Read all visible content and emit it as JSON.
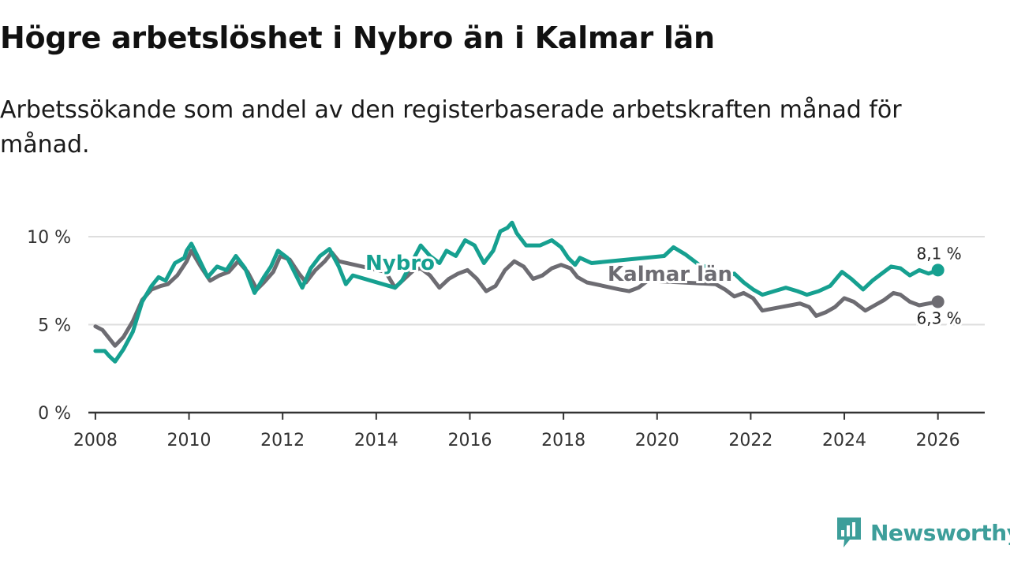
{
  "title": "Högre arbetslöshet i Nybro än i Kalmar län",
  "subtitle": "Arbetssökande som andel av den registerbaserade arbetskraften månad för månad.",
  "brand": {
    "name": "Newsworthy",
    "icon": "newsworthy-logo-icon"
  },
  "colors": {
    "nybro": "#16a090",
    "kalmar": "#6d6c72",
    "grid": "#dedede",
    "axis": "#333333"
  },
  "chart_data": {
    "type": "line",
    "title": "Högre arbetslöshet i Nybro än i Kalmar län",
    "xlabel": "",
    "ylabel": "",
    "xlim": [
      2007.85,
      2027.0
    ],
    "ylim": [
      0,
      10
    ],
    "x_ticks": [
      {
        "value": 2008,
        "label": "2008"
      },
      {
        "value": 2010,
        "label": "2010"
      },
      {
        "value": 2012,
        "label": "2012"
      },
      {
        "value": 2014,
        "label": "2014"
      },
      {
        "value": 2016,
        "label": "2016"
      },
      {
        "value": 2018,
        "label": "2018"
      },
      {
        "value": 2020,
        "label": "2020"
      },
      {
        "value": 2022,
        "label": "2022"
      },
      {
        "value": 2024,
        "label": "2024"
      },
      {
        "value": 2026,
        "label": "2026"
      }
    ],
    "y_ticks": [
      {
        "value": 0,
        "label": "0 %"
      },
      {
        "value": 5,
        "label": "5 %"
      },
      {
        "value": 10,
        "label": "10 %"
      }
    ],
    "series": [
      {
        "name": "Nybro",
        "label": "Nybro",
        "color": "#16a090",
        "end_label": "8,1 %",
        "points": [
          [
            2008.0,
            3.5
          ],
          [
            2008.2,
            3.5
          ],
          [
            2008.3,
            3.2
          ],
          [
            2008.42,
            2.9
          ],
          [
            2008.6,
            3.6
          ],
          [
            2008.8,
            4.6
          ],
          [
            2009.0,
            6.3
          ],
          [
            2009.2,
            7.2
          ],
          [
            2009.35,
            7.7
          ],
          [
            2009.5,
            7.5
          ],
          [
            2009.7,
            8.5
          ],
          [
            2009.9,
            8.8
          ],
          [
            2009.95,
            9.2
          ],
          [
            2010.05,
            9.6
          ],
          [
            2010.2,
            8.8
          ],
          [
            2010.4,
            7.7
          ],
          [
            2010.6,
            8.3
          ],
          [
            2010.8,
            8.1
          ],
          [
            2011.0,
            8.9
          ],
          [
            2011.2,
            8.2
          ],
          [
            2011.4,
            6.8
          ],
          [
            2011.6,
            7.7
          ],
          [
            2011.75,
            8.3
          ],
          [
            2011.9,
            9.2
          ],
          [
            2012.1,
            8.8
          ],
          [
            2012.25,
            8.0
          ],
          [
            2012.42,
            7.1
          ],
          [
            2012.6,
            8.2
          ],
          [
            2012.8,
            8.9
          ],
          [
            2013.0,
            9.3
          ],
          [
            2013.2,
            8.3
          ],
          [
            2013.35,
            7.3
          ],
          [
            2013.5,
            7.8
          ],
          [
            2014.4,
            7.1
          ],
          [
            2014.55,
            7.5
          ],
          [
            2014.75,
            8.5
          ],
          [
            2014.95,
            9.5
          ],
          [
            2015.15,
            8.9
          ],
          [
            2015.35,
            8.5
          ],
          [
            2015.5,
            9.2
          ],
          [
            2015.7,
            8.9
          ],
          [
            2015.9,
            9.8
          ],
          [
            2016.1,
            9.5
          ],
          [
            2016.3,
            8.5
          ],
          [
            2016.5,
            9.2
          ],
          [
            2016.65,
            10.3
          ],
          [
            2016.8,
            10.5
          ],
          [
            2016.9,
            10.8
          ],
          [
            2017.0,
            10.2
          ],
          [
            2017.2,
            9.5
          ],
          [
            2017.5,
            9.5
          ],
          [
            2017.75,
            9.8
          ],
          [
            2017.95,
            9.4
          ],
          [
            2018.1,
            8.8
          ],
          [
            2018.25,
            8.4
          ],
          [
            2018.35,
            8.8
          ],
          [
            2018.6,
            8.5
          ],
          [
            2020.15,
            8.9
          ],
          [
            2020.35,
            9.4
          ],
          [
            2020.6,
            9.0
          ],
          [
            2020.9,
            8.4
          ],
          [
            2021.2,
            8.2
          ],
          [
            2021.4,
            7.6
          ],
          [
            2021.65,
            7.9
          ],
          [
            2021.85,
            7.4
          ],
          [
            2022.05,
            7.0
          ],
          [
            2022.25,
            6.7
          ],
          [
            2022.5,
            6.9
          ],
          [
            2022.75,
            7.1
          ],
          [
            2023.0,
            6.9
          ],
          [
            2023.2,
            6.7
          ],
          [
            2023.45,
            6.9
          ],
          [
            2023.7,
            7.2
          ],
          [
            2023.95,
            8.0
          ],
          [
            2024.15,
            7.6
          ],
          [
            2024.4,
            7.0
          ],
          [
            2024.6,
            7.5
          ],
          [
            2024.8,
            7.9
          ],
          [
            2025.0,
            8.3
          ],
          [
            2025.2,
            8.2
          ],
          [
            2025.4,
            7.8
          ],
          [
            2025.6,
            8.1
          ],
          [
            2025.8,
            7.9
          ],
          [
            2026.0,
            8.1
          ]
        ]
      },
      {
        "name": "Kalmar län",
        "label": "Kalmar län",
        "color": "#6d6c72",
        "end_label": "6,3 %",
        "points": [
          [
            2008.0,
            4.9
          ],
          [
            2008.15,
            4.7
          ],
          [
            2008.3,
            4.2
          ],
          [
            2008.42,
            3.8
          ],
          [
            2008.6,
            4.3
          ],
          [
            2008.8,
            5.2
          ],
          [
            2009.0,
            6.4
          ],
          [
            2009.2,
            7.0
          ],
          [
            2009.4,
            7.2
          ],
          [
            2009.55,
            7.3
          ],
          [
            2009.75,
            7.8
          ],
          [
            2009.95,
            8.6
          ],
          [
            2010.05,
            9.2
          ],
          [
            2010.25,
            8.3
          ],
          [
            2010.45,
            7.5
          ],
          [
            2010.65,
            7.8
          ],
          [
            2010.85,
            8.0
          ],
          [
            2011.05,
            8.6
          ],
          [
            2011.25,
            8.0
          ],
          [
            2011.45,
            7.0
          ],
          [
            2011.6,
            7.4
          ],
          [
            2011.8,
            8.0
          ],
          [
            2011.95,
            8.9
          ],
          [
            2012.15,
            8.7
          ],
          [
            2012.35,
            7.9
          ],
          [
            2012.5,
            7.4
          ],
          [
            2012.7,
            8.1
          ],
          [
            2012.9,
            8.6
          ],
          [
            2013.05,
            9.1
          ],
          [
            2013.2,
            8.6
          ],
          [
            2014.2,
            8.0
          ],
          [
            2014.4,
            7.1
          ],
          [
            2014.6,
            7.6
          ],
          [
            2014.8,
            8.1
          ],
          [
            2014.95,
            8.2
          ],
          [
            2015.15,
            7.8
          ],
          [
            2015.35,
            7.1
          ],
          [
            2015.55,
            7.6
          ],
          [
            2015.75,
            7.9
          ],
          [
            2015.95,
            8.1
          ],
          [
            2016.15,
            7.6
          ],
          [
            2016.35,
            6.9
          ],
          [
            2016.55,
            7.2
          ],
          [
            2016.75,
            8.1
          ],
          [
            2016.95,
            8.6
          ],
          [
            2017.15,
            8.3
          ],
          [
            2017.35,
            7.6
          ],
          [
            2017.55,
            7.8
          ],
          [
            2017.75,
            8.2
          ],
          [
            2017.95,
            8.4
          ],
          [
            2018.15,
            8.2
          ],
          [
            2018.3,
            7.7
          ],
          [
            2018.5,
            7.4
          ],
          [
            2019.2,
            7.0
          ],
          [
            2019.4,
            6.9
          ],
          [
            2019.6,
            7.1
          ],
          [
            2019.8,
            7.5
          ],
          [
            2021.25,
            7.3
          ],
          [
            2021.45,
            7.0
          ],
          [
            2021.65,
            6.6
          ],
          [
            2021.85,
            6.8
          ],
          [
            2022.05,
            6.5
          ],
          [
            2022.25,
            5.8
          ],
          [
            2022.45,
            5.9
          ],
          [
            2022.65,
            6.0
          ],
          [
            2022.85,
            6.1
          ],
          [
            2023.05,
            6.2
          ],
          [
            2023.25,
            6.0
          ],
          [
            2023.4,
            5.5
          ],
          [
            2023.6,
            5.7
          ],
          [
            2023.8,
            6.0
          ],
          [
            2024.0,
            6.5
          ],
          [
            2024.2,
            6.3
          ],
          [
            2024.45,
            5.8
          ],
          [
            2024.65,
            6.1
          ],
          [
            2024.85,
            6.4
          ],
          [
            2025.05,
            6.8
          ],
          [
            2025.2,
            6.7
          ],
          [
            2025.4,
            6.3
          ],
          [
            2025.6,
            6.1
          ],
          [
            2025.8,
            6.2
          ],
          [
            2026.0,
            6.3
          ]
        ]
      }
    ]
  }
}
